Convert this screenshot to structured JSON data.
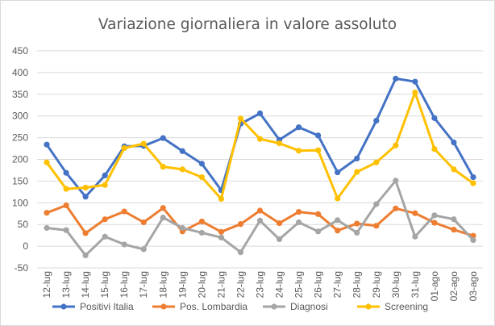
{
  "chart_data": {
    "type": "line",
    "title": "Variazione giornaliera in valore assoluto",
    "xlabel": "",
    "ylabel": "",
    "ylim": [
      -50,
      450
    ],
    "yticks": [
      -50,
      0,
      50,
      100,
      150,
      200,
      250,
      300,
      350,
      400,
      450
    ],
    "grid": true,
    "legend_position": "bottom",
    "categories": [
      "12-lug",
      "13-lug",
      "14-lug",
      "15-lug",
      "16-lug",
      "17-lug",
      "18-lug",
      "19-lug",
      "20-lug",
      "21-lug",
      "22-lug",
      "23-lug",
      "24-lug",
      "25-lug",
      "26-lug",
      "27-lug",
      "28-lug",
      "29-lug",
      "30-lug",
      "31-lug",
      "01-ago",
      "02-ago",
      "03-ago"
    ],
    "series": [
      {
        "name": "Positivi Italia",
        "color": "#4472c4",
        "values": [
          234,
          169,
          114,
          163,
          230,
          231,
          249,
          219,
          190,
          129,
          282,
          306,
          245,
          274,
          255,
          170,
          202,
          289,
          386,
          379,
          295,
          239,
          159
        ]
      },
      {
        "name": "Pos. Lombardia",
        "color": "#ed7d31",
        "values": [
          77,
          94,
          30,
          62,
          80,
          55,
          88,
          34,
          57,
          33,
          51,
          82,
          53,
          79,
          74,
          36,
          52,
          47,
          87,
          76,
          54,
          38,
          24
        ]
      },
      {
        "name": "Diagnosi",
        "color": "#a5a5a5",
        "values": [
          42,
          37,
          -21,
          22,
          4,
          -7,
          66,
          42,
          31,
          20,
          -14,
          59,
          16,
          55,
          34,
          60,
          31,
          97,
          151,
          22,
          71,
          62,
          14
        ]
      },
      {
        "name": "Screening",
        "color": "#ffc000",
        "values": [
          193,
          132,
          135,
          141,
          226,
          236,
          183,
          177,
          159,
          109,
          294,
          247,
          237,
          220,
          221,
          110,
          171,
          193,
          232,
          354,
          224,
          177,
          145
        ]
      }
    ]
  }
}
